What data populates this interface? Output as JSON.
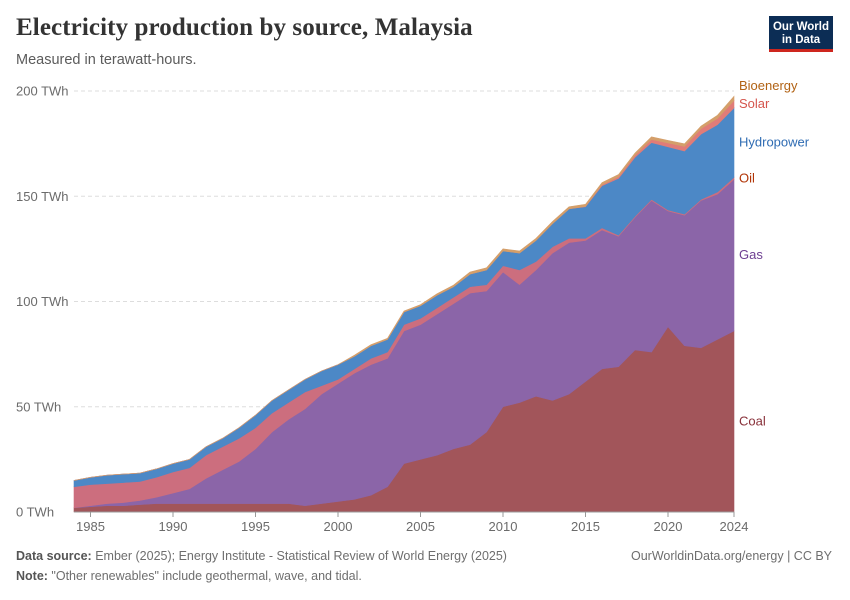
{
  "header": {
    "title": "Electricity production by source, Malaysia",
    "subtitle": "Measured in terawatt-hours.",
    "logo_line1": "Our World",
    "logo_line2": "in Data"
  },
  "footer": {
    "source_label": "Data source:",
    "source_text": " Ember (2025); Energy Institute - Statistical Review of World Energy (2025)",
    "note_label": "Note:",
    "note_text": " \"Other renewables\" include geothermal, wave, and tidal.",
    "credit": "OurWorldinData.org/energy | CC BY"
  },
  "chart_data": {
    "type": "area",
    "stacked": true,
    "unit": "TWh",
    "title": "Electricity production by source, Malaysia",
    "ylim": [
      0,
      200
    ],
    "yticks": [
      0,
      50,
      100,
      150,
      200
    ],
    "ytick_labels": [
      "0 TWh",
      "50 TWh",
      "100 TWh",
      "150 TWh",
      "200 TWh"
    ],
    "xticks": [
      1985,
      1990,
      1995,
      2000,
      2005,
      2010,
      2015,
      2020,
      2024
    ],
    "xlim": [
      1984,
      2024
    ],
    "grid": true,
    "x": [
      1984,
      1985,
      1986,
      1987,
      1988,
      1989,
      1990,
      1991,
      1992,
      1993,
      1994,
      1995,
      1996,
      1997,
      1998,
      1999,
      2000,
      2001,
      2002,
      2003,
      2004,
      2005,
      2006,
      2007,
      2008,
      2009,
      2010,
      2011,
      2012,
      2013,
      2014,
      2015,
      2016,
      2017,
      2018,
      2019,
      2020,
      2021,
      2022,
      2023,
      2024
    ],
    "series": [
      {
        "name": "Coal",
        "color": "#a2555a",
        "label_color": "#883039",
        "values": [
          2,
          2.5,
          3,
          3,
          3.5,
          4,
          4,
          4,
          4,
          4,
          4,
          4,
          4,
          4,
          3,
          4,
          5,
          6,
          8,
          12,
          23,
          25,
          27,
          30,
          32,
          38,
          50,
          52,
          55,
          53,
          56,
          62,
          68,
          69,
          77,
          76,
          88,
          79,
          78,
          82,
          86
        ]
      },
      {
        "name": "Gas",
        "color": "#8b65a8",
        "label_color": "#6d3e91",
        "values": [
          0,
          0.5,
          1,
          1.5,
          2,
          3,
          5,
          7,
          12,
          16,
          20,
          26,
          34,
          40,
          46,
          52,
          56,
          60,
          62,
          61,
          63,
          64,
          67,
          69,
          72,
          67,
          64,
          56,
          60,
          70,
          72,
          67,
          66,
          62,
          63,
          72,
          55,
          62,
          70,
          69,
          72
        ]
      },
      {
        "name": "Oil",
        "color": "#cc6e7e",
        "label_color": "#b13507",
        "values": [
          10,
          10,
          9.5,
          9.5,
          9,
          9.5,
          10,
          10,
          11,
          11,
          11,
          10,
          9,
          8,
          8,
          4,
          2,
          2,
          3,
          3,
          3,
          3,
          3,
          3,
          3,
          3,
          3,
          7,
          4,
          3,
          2,
          1,
          1,
          0.5,
          0.5,
          0.5,
          0.5,
          0.5,
          0.5,
          1,
          1
        ]
      },
      {
        "name": "Hydropower",
        "color": "#4c88c6",
        "label_color": "#2f6cb3",
        "values": [
          3,
          3.5,
          4,
          4,
          4,
          4,
          4,
          4,
          4,
          4,
          5,
          6,
          6,
          6,
          6,
          7,
          7,
          6,
          6,
          6,
          6,
          6,
          6,
          5,
          6,
          7,
          7,
          8,
          10,
          11,
          14,
          15,
          20,
          27,
          28,
          27,
          30,
          30,
          31,
          32,
          33
        ]
      },
      {
        "name": "Solar",
        "color": "#e07c78",
        "label_color": "#d5554d",
        "values": [
          0,
          0,
          0,
          0,
          0,
          0,
          0,
          0,
          0,
          0,
          0,
          0,
          0,
          0,
          0,
          0,
          0,
          0,
          0,
          0,
          0,
          0,
          0,
          0,
          0,
          0,
          0,
          0,
          0,
          0,
          0,
          0.2,
          0.5,
          0.8,
          1,
          1.5,
          1.8,
          2.2,
          2.6,
          3,
          3.5
        ]
      },
      {
        "name": "Bioenergy",
        "color": "#d49f6a",
        "label_color": "#b16214",
        "values": [
          0,
          0,
          0,
          0,
          0,
          0,
          0,
          0,
          0,
          0,
          0,
          0,
          0,
          0,
          0,
          0,
          0,
          0.5,
          0.5,
          0.5,
          0.5,
          0.5,
          0.7,
          0.8,
          1,
          1,
          1,
          1,
          1,
          1,
          1,
          1,
          1,
          1,
          1,
          1.2,
          1.2,
          1.2,
          1.2,
          1.5,
          2
        ]
      }
    ]
  }
}
